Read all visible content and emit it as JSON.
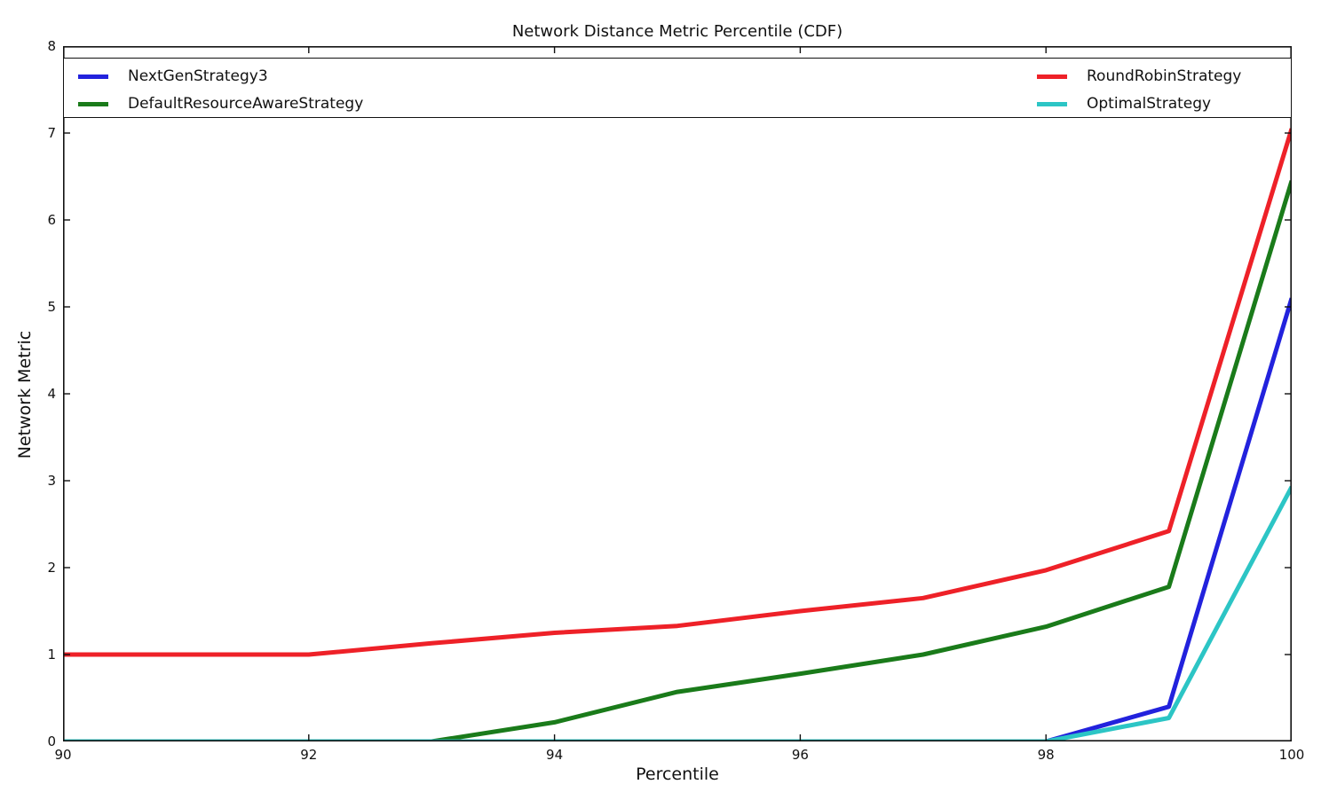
{
  "title": "Network Distance Metric Percentile (CDF)",
  "x_axis": {
    "label": "Percentile",
    "tick_labels": [
      "90",
      "92",
      "94",
      "96",
      "98",
      "100"
    ]
  },
  "y_axis": {
    "label": "Network Metric",
    "tick_labels": [
      "0",
      "1",
      "2",
      "3",
      "4",
      "5",
      "6",
      "7",
      "8"
    ]
  },
  "legend": {
    "columns": [
      [
        "NextGenStrategy3",
        "DefaultResourceAwareStrategy"
      ],
      [
        "RoundRobinStrategy",
        "OptimalStrategy"
      ]
    ]
  },
  "chart_data": {
    "type": "line",
    "title": "Network Distance Metric Percentile (CDF)",
    "xlabel": "Percentile",
    "ylabel": "Network Metric",
    "xlim": [
      90,
      100
    ],
    "ylim": [
      0,
      8
    ],
    "xticks": [
      90,
      92,
      94,
      96,
      98,
      100
    ],
    "yticks": [
      0,
      1,
      2,
      3,
      4,
      5,
      6,
      7,
      8
    ],
    "grid": false,
    "legend_position": "top inside, expanded full plot width, 2 columns",
    "x": [
      90,
      91,
      92,
      93,
      94,
      95,
      96,
      97,
      98,
      99,
      100
    ],
    "series": [
      {
        "name": "NextGenStrategy3",
        "color": "#2222dd",
        "values": [
          0,
          0,
          0,
          0,
          0,
          0,
          0,
          0,
          0,
          0.4,
          5.1
        ]
      },
      {
        "name": "DefaultResourceAwareStrategy",
        "color": "#1a7b1a",
        "values": [
          0,
          0,
          0,
          0,
          0.22,
          0.57,
          0.78,
          1.0,
          1.32,
          1.78,
          6.45
        ]
      },
      {
        "name": "RoundRobinStrategy",
        "color": "#ee2128",
        "values": [
          1.0,
          1.0,
          1.0,
          1.13,
          1.25,
          1.33,
          1.5,
          1.65,
          1.97,
          2.42,
          7.05
        ]
      },
      {
        "name": "OptimalStrategy",
        "color": "#2cc5c5",
        "values": [
          0,
          0,
          0,
          0,
          0,
          0,
          0,
          0,
          0,
          0.27,
          2.93
        ]
      }
    ]
  }
}
